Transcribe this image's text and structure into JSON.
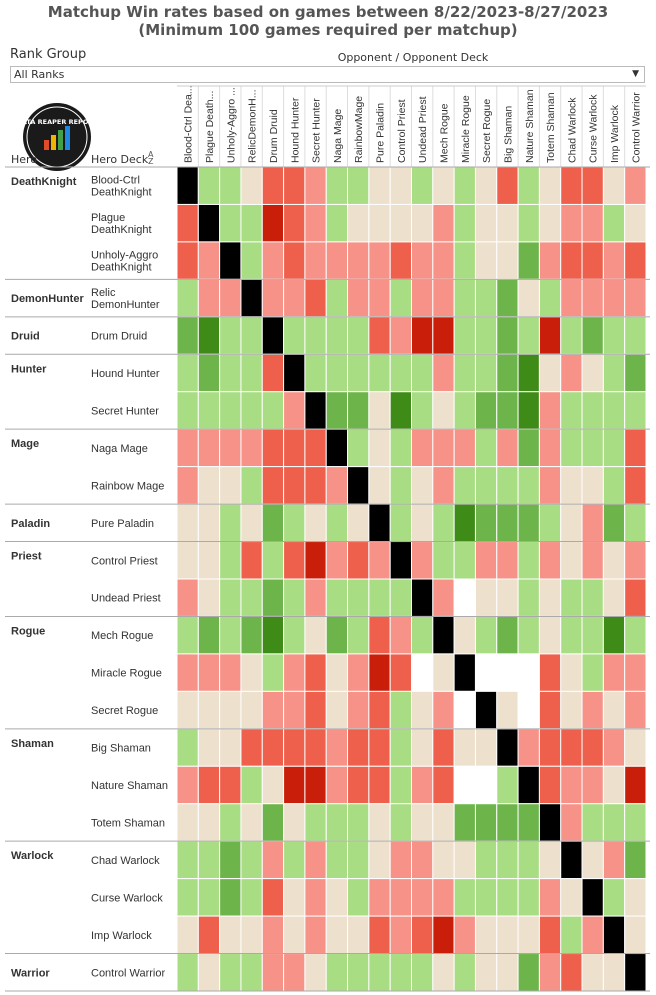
{
  "title_line1": "Matchup Win rates based on games between 8/22/2023-8/27/2023",
  "title_line2": "(Minimum 100 games required per matchup)",
  "rank_group_label": "Rank Group",
  "rank_group_value": "All Ranks",
  "opponent_header": "Opponent / Opponent Deck",
  "hero_col_header": "Hero",
  "deck_col_header": "Hero Deck",
  "logo_text": "DATA REAPER REPORT",
  "legend_scale": {
    "low": "#c81e0a",
    "mid": "#ede0cd",
    "high": "#3e8c17",
    "mirror": "#000000",
    "no_data": "#ffffff"
  },
  "chart_data": {
    "type": "heatmap",
    "title": "Matchup Win rates based on games between 8/22/2023-8/27/2023",
    "subtitle": "(Minimum 100 games required per matchup)",
    "value_note": "Levels are estimated from cell color: -3 strong loss ... 0 even ... +3 strong win; 'X' = mirror, null = insufficient data",
    "columns": [
      "Blood-Ctrl Dea...",
      "Plague Death...",
      "Unholy-Aggro ...",
      "RelicDemonH...",
      "Drum Druid",
      "Hound Hunter",
      "Secret Hunter",
      "Naga Mage",
      "RainbowMage",
      "Pure Paladin",
      "Control Priest",
      "Undead Priest",
      "Mech Rogue",
      "Miracle Rogue",
      "Secret Rogue",
      "Big Shaman",
      "Nature Shaman",
      "Totem Shaman",
      "Chad Warlock",
      "Curse Warlock",
      "Imp Warlock",
      "Control Warrior"
    ],
    "groups": [
      {
        "hero": "DeathKnight",
        "decks": [
          {
            "name": "Blood-Ctrl\nDeathKnight",
            "levels": [
              "X",
              1,
              1,
              0,
              -2,
              -2,
              -1,
              1,
              1,
              0,
              0,
              1,
              0,
              1,
              0,
              -2,
              1,
              0,
              -2,
              -2,
              0,
              -1
            ]
          },
          {
            "name": "Plague\nDeathKnight",
            "levels": [
              -2,
              "X",
              1,
              1,
              -3,
              -2,
              -1,
              1,
              0,
              0,
              0,
              0,
              -1,
              1,
              0,
              0,
              1,
              0,
              -1,
              -1,
              1,
              0
            ]
          },
          {
            "name": "Unholy-Aggro\nDeathKnight",
            "levels": [
              -2,
              -1,
              "X",
              1,
              -1,
              -2,
              -1,
              -1,
              -1,
              -1,
              -2,
              -1,
              -1,
              1,
              0,
              0,
              2,
              -1,
              -2,
              -2,
              -1,
              -2
            ]
          }
        ]
      },
      {
        "hero": "DemonHunter",
        "decks": [
          {
            "name": "Relic\nDemonHunter",
            "levels": [
              1,
              -1,
              -1,
              "X",
              -1,
              -1,
              -2,
              1,
              -1,
              -1,
              1,
              -1,
              -1,
              1,
              1,
              2,
              0,
              1,
              -1,
              -1,
              -1,
              -1
            ]
          }
        ]
      },
      {
        "hero": "Druid",
        "decks": [
          {
            "name": "Drum Druid",
            "levels": [
              2,
              3,
              1,
              1,
              "X",
              1,
              1,
              1,
              1,
              -2,
              -1,
              -3,
              -3,
              1,
              1,
              2,
              1,
              -3,
              1,
              2,
              1,
              1
            ]
          }
        ]
      },
      {
        "hero": "Hunter",
        "decks": [
          {
            "name": "Hound Hunter",
            "levels": [
              1,
              2,
              1,
              1,
              -2,
              "X",
              1,
              1,
              1,
              1,
              1,
              1,
              -1,
              1,
              1,
              2,
              3,
              0,
              -1,
              0,
              1,
              2
            ]
          },
          {
            "name": "Secret Hunter",
            "levels": [
              1,
              1,
              1,
              1,
              1,
              -1,
              "X",
              2,
              2,
              0,
              3,
              1,
              0,
              1,
              2,
              2,
              3,
              -1,
              1,
              1,
              1,
              1
            ]
          }
        ]
      },
      {
        "hero": "Mage",
        "decks": [
          {
            "name": "Naga Mage",
            "levels": [
              -1,
              -1,
              -1,
              -1,
              -2,
              -2,
              -2,
              "X",
              1,
              0,
              1,
              -1,
              -1,
              -1,
              1,
              -1,
              2,
              -1,
              1,
              1,
              1,
              -2
            ]
          },
          {
            "name": "Rainbow Mage",
            "levels": [
              -1,
              0,
              0,
              1,
              -2,
              -2,
              -2,
              -1,
              "X",
              0,
              1,
              0,
              -1,
              1,
              1,
              1,
              1,
              -1,
              0,
              0,
              1,
              -2
            ]
          }
        ]
      },
      {
        "hero": "Paladin",
        "decks": [
          {
            "name": "Pure Paladin",
            "levels": [
              0,
              0,
              1,
              0,
              2,
              1,
              0,
              1,
              0,
              "X",
              1,
              0,
              1,
              3,
              2,
              2,
              2,
              1,
              0,
              -1,
              2,
              1
            ]
          }
        ]
      },
      {
        "hero": "Priest",
        "decks": [
          {
            "name": "Control Priest",
            "levels": [
              0,
              0,
              1,
              -2,
              1,
              -2,
              -3,
              -1,
              -2,
              -1,
              "X",
              -1,
              1,
              1,
              -1,
              -1,
              1,
              -1,
              0,
              -1,
              0,
              -1
            ]
          },
          {
            "name": "Undead Priest",
            "levels": [
              -1,
              0,
              1,
              1,
              2,
              1,
              -1,
              1,
              1,
              1,
              1,
              "X",
              -1,
              null,
              0,
              0,
              1,
              0,
              1,
              1,
              0,
              -2
            ]
          }
        ]
      },
      {
        "hero": "Rogue",
        "decks": [
          {
            "name": "Mech Rogue",
            "levels": [
              1,
              2,
              1,
              2,
              3,
              1,
              0,
              2,
              1,
              -2,
              -1,
              1,
              "X",
              0,
              1,
              2,
              1,
              0,
              1,
              1,
              3,
              1
            ]
          },
          {
            "name": "Miracle Rogue",
            "levels": [
              -1,
              -1,
              -1,
              0,
              1,
              -1,
              -2,
              0,
              -1,
              -3,
              -2,
              null,
              0,
              "X",
              null,
              null,
              null,
              -2,
              0,
              1,
              -1,
              -1
            ]
          },
          {
            "name": "Secret Rogue",
            "levels": [
              0,
              0,
              0,
              0,
              -1,
              -1,
              -2,
              0,
              -1,
              -2,
              1,
              0,
              -1,
              null,
              "X",
              0,
              null,
              -2,
              0,
              -1,
              0,
              -1
            ]
          }
        ]
      },
      {
        "hero": "Shaman",
        "decks": [
          {
            "name": "Big Shaman",
            "levels": [
              1,
              0,
              0,
              -2,
              -2,
              -2,
              -2,
              -1,
              -2,
              -2,
              1,
              0,
              -2,
              0,
              0,
              "X",
              -1,
              -2,
              -2,
              -2,
              -1,
              0
            ]
          },
          {
            "name": "Nature Shaman",
            "levels": [
              -1,
              -2,
              -2,
              1,
              0,
              -3,
              -3,
              -1,
              -2,
              -2,
              1,
              -1,
              -2,
              null,
              null,
              1,
              "X",
              -2,
              -1,
              -1,
              0,
              -3
            ]
          },
          {
            "name": "Totem Shaman",
            "levels": [
              0,
              0,
              1,
              0,
              2,
              0,
              1,
              1,
              1,
              0,
              1,
              0,
              0,
              2,
              2,
              2,
              2,
              "X",
              -1,
              1,
              1,
              1
            ]
          }
        ]
      },
      {
        "hero": "Warlock",
        "decks": [
          {
            "name": "Chad Warlock",
            "levels": [
              1,
              1,
              2,
              1,
              -1,
              1,
              -1,
              1,
              1,
              0,
              -1,
              -1,
              0,
              0,
              1,
              1,
              1,
              0,
              "X",
              0,
              -1,
              2
            ]
          },
          {
            "name": "Curse Warlock",
            "levels": [
              1,
              1,
              2,
              1,
              -2,
              0,
              -1,
              0,
              1,
              -1,
              -1,
              -1,
              -1,
              1,
              1,
              1,
              1,
              -1,
              0,
              "X",
              1,
              0
            ]
          },
          {
            "name": "Imp Warlock",
            "levels": [
              0,
              -2,
              0,
              0,
              -1,
              0,
              -1,
              0,
              0,
              -2,
              -1,
              -2,
              -3,
              -1,
              0,
              0,
              0,
              -2,
              1,
              -1,
              "X",
              0
            ]
          }
        ]
      },
      {
        "hero": "Warrior",
        "decks": [
          {
            "name": "Control Warrior",
            "levels": [
              1,
              0,
              1,
              1,
              -1,
              -1,
              0,
              1,
              1,
              1,
              1,
              1,
              0,
              1,
              0,
              0,
              2,
              -1,
              -2,
              0,
              0,
              "X"
            ]
          }
        ]
      }
    ]
  }
}
